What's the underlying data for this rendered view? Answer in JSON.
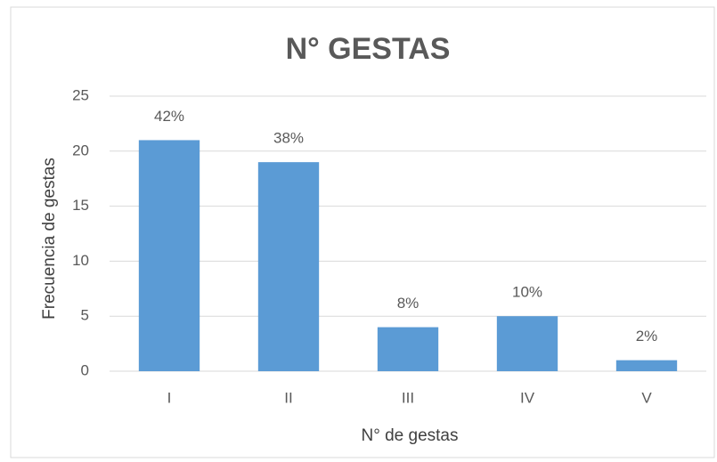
{
  "chart_data": {
    "type": "bar",
    "title": "N° GESTAS",
    "xlabel": "N° de gestas",
    "ylabel": "Frecuencia de gestas",
    "categories": [
      "I",
      "II",
      "III",
      "IV",
      "V"
    ],
    "values": [
      21,
      19,
      4,
      5,
      1
    ],
    "value_labels": [
      "42%",
      "38%",
      "8%",
      "10%",
      "2%"
    ],
    "color": "#5b9bd5",
    "ylim": [
      0,
      25
    ],
    "yticks": [
      0,
      5,
      10,
      15,
      20,
      25
    ],
    "grid": true
  }
}
